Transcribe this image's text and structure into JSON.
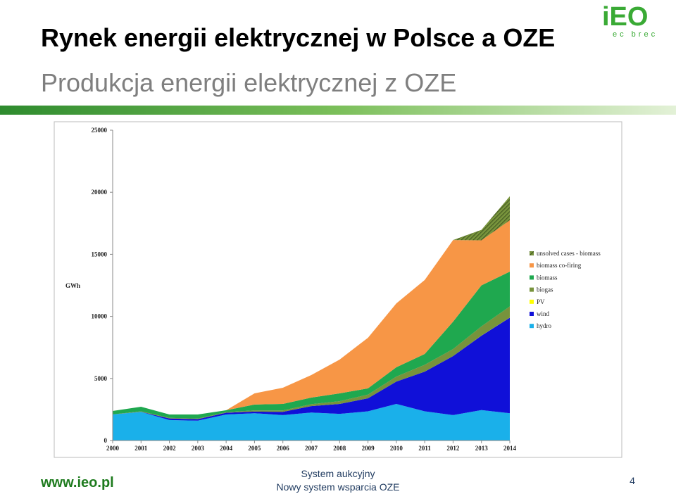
{
  "slide": {
    "title": "Rynek energii elektrycznej w Polsce a OZE",
    "subtitle": "Produkcja energii elektrycznej z OZE",
    "logo": {
      "mark": "iEO",
      "text": "ec brec"
    },
    "footer": {
      "url": "www.ieo.pl",
      "center_title": "System aukcyjny",
      "center_subtitle": "Nowy system wsparcia OZE",
      "page": "4"
    }
  },
  "chart_data": {
    "type": "stacked-area",
    "y_label": "GWh",
    "x": [
      2000,
      2001,
      2002,
      2003,
      2004,
      2005,
      2006,
      2007,
      2008,
      2009,
      2010,
      2011,
      2012,
      2013,
      2014
    ],
    "xlim": [
      2000,
      2014
    ],
    "ylim": [
      0,
      25000
    ],
    "yticks": [
      0,
      5000,
      10000,
      15000,
      20000,
      25000
    ],
    "grid": false,
    "legend": "right",
    "series": [
      {
        "name": "hydro",
        "color": "#1ab0ea",
        "values": [
          2100,
          2300,
          1650,
          1600,
          2100,
          2200,
          2050,
          2250,
          2150,
          2350,
          2950,
          2350,
          2050,
          2450,
          2200
        ]
      },
      {
        "name": "wind",
        "color": "#1010d8",
        "values": [
          5,
          10,
          130,
          120,
          140,
          130,
          260,
          520,
          800,
          1050,
          1800,
          3200,
          4750,
          6000,
          7700
        ]
      },
      {
        "name": "PV",
        "color": "#ffff00",
        "values": [
          0,
          0,
          0,
          0,
          0,
          0,
          0,
          0,
          0,
          0,
          0,
          0,
          1,
          1,
          7
        ]
      },
      {
        "name": "biogas",
        "color": "#77933c",
        "values": [
          0,
          40,
          50,
          50,
          40,
          100,
          110,
          160,
          220,
          300,
          400,
          550,
          570,
          750,
          900
        ]
      },
      {
        "name": "biomass",
        "color": "#1fa84f",
        "values": [
          275,
          370,
          270,
          330,
          160,
          470,
          530,
          530,
          630,
          500,
          750,
          870,
          2200,
          3300,
          2800
        ]
      },
      {
        "name": "biomass co-firing",
        "color": "#f79646",
        "values": [
          0,
          0,
          0,
          0,
          0,
          900,
          1300,
          1810,
          2720,
          4080,
          5150,
          5960,
          6580,
          3630,
          4140
        ]
      },
      {
        "name": "unsolved cases - biomass",
        "color": "#5f7a32",
        "values": [
          0,
          0,
          0,
          0,
          0,
          0,
          0,
          0,
          0,
          0,
          0,
          0,
          0,
          840,
          1930
        ]
      }
    ]
  }
}
